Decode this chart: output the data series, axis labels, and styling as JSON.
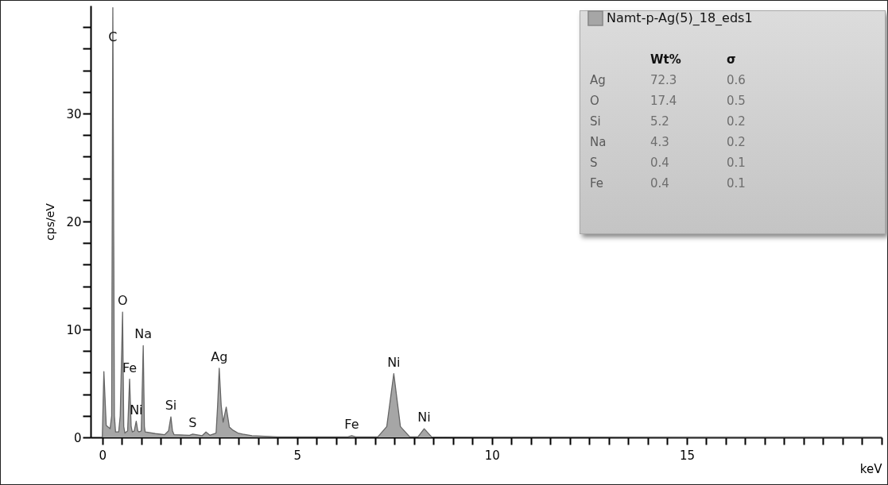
{
  "chart_data": {
    "type": "area",
    "ylabel": "cps/eV",
    "xlabel": "keV",
    "xlim": [
      -0.3,
      20
    ],
    "ylim": [
      0,
      40
    ],
    "xticks": [
      0,
      {
        "value": 0.5,
        "label": null
      },
      {
        "value": 1,
        "label": null
      },
      {
        "value": 1.5,
        "label": null
      },
      {
        "value": 2,
        "label": null
      },
      {
        "value": 2.5,
        "label": null
      },
      {
        "value": 3,
        "label": null
      },
      {
        "value": 3.5,
        "label": null
      },
      {
        "value": 4,
        "label": null
      },
      {
        "value": 4.5,
        "label": null
      },
      5,
      {
        "value": 5.5,
        "label": null
      },
      {
        "value": 6,
        "label": null
      },
      {
        "value": 6.5,
        "label": null
      },
      {
        "value": 7,
        "label": null
      },
      {
        "value": 7.5,
        "label": null
      },
      {
        "value": 8,
        "label": null
      },
      {
        "value": 8.5,
        "label": null
      },
      {
        "value": 9,
        "label": null
      },
      {
        "value": 9.5,
        "label": null
      },
      10,
      {
        "value": 10.5,
        "label": null
      },
      {
        "value": 11,
        "label": null
      },
      {
        "value": 11.5,
        "label": null
      },
      {
        "value": 12,
        "label": null
      },
      {
        "value": 12.5,
        "label": null
      },
      {
        "value": 13,
        "label": null
      },
      {
        "value": 13.5,
        "label": null
      },
      {
        "value": 14,
        "label": null
      },
      {
        "value": 14.5,
        "label": null
      },
      15,
      {
        "value": 15.5,
        "label": null
      },
      {
        "value": 16,
        "label": null
      },
      {
        "value": 16.5,
        "label": null
      },
      {
        "value": 17,
        "label": null
      },
      {
        "value": 17.5,
        "label": null
      },
      {
        "value": 18,
        "label": null
      },
      {
        "value": 18.5,
        "label": null
      },
      {
        "value": 19,
        "label": null
      },
      {
        "value": 19.5,
        "label": null
      },
      {
        "value": 20,
        "label": null
      }
    ],
    "yticks": [
      0,
      {
        "value": 2,
        "label": null
      },
      {
        "value": 4,
        "label": null
      },
      {
        "value": 6,
        "label": null
      },
      {
        "value": 8,
        "label": null
      },
      10,
      {
        "value": 12,
        "label": null
      },
      {
        "value": 14,
        "label": null
      },
      {
        "value": 16,
        "label": null
      },
      {
        "value": 18,
        "label": null
      },
      20,
      {
        "value": 22,
        "label": null
      },
      {
        "value": 24,
        "label": null
      },
      {
        "value": 26,
        "label": null
      },
      {
        "value": 28,
        "label": null
      },
      30,
      {
        "value": 32,
        "label": null
      },
      {
        "value": 34,
        "label": null
      },
      {
        "value": 36,
        "label": null
      },
      {
        "value": 38,
        "label": null
      }
    ],
    "legend": "top right",
    "series": [
      {
        "name": "Namt-p-Ag(5)_18_eds1",
        "color": "#a6a6a6",
        "x": [
          0,
          0.04,
          0.1,
          0.2,
          0.24,
          0.27,
          0.31,
          0.34,
          0.42,
          0.46,
          0.52,
          0.55,
          0.58,
          0.65,
          0.7,
          0.74,
          0.77,
          0.82,
          0.87,
          0.91,
          0.94,
          1.0,
          1.05,
          1.08,
          1.1,
          1.36,
          1.6,
          1.7,
          1.76,
          1.8,
          1.84,
          2.24,
          2.32,
          2.56,
          2.66,
          2.76,
          2.92,
          2.96,
          3.0,
          3.05,
          3.1,
          3.18,
          3.26,
          3.36,
          3.48,
          3.6,
          3.84,
          4.5,
          6.3,
          6.4,
          6.5,
          7.07,
          7.3,
          7.48,
          7.65,
          7.89,
          8.1,
          8.26,
          8.45,
          10,
          15,
          20
        ],
        "values": [
          0,
          6.1,
          1.1,
          0.8,
          2,
          39.8,
          2,
          0.5,
          0.5,
          2,
          11.6,
          1,
          0.4,
          0.6,
          5.4,
          1,
          0.5,
          0.6,
          1.5,
          0.6,
          0.5,
          0.6,
          8.5,
          1,
          0.5,
          0.35,
          0.25,
          0.6,
          1.9,
          0.6,
          0.25,
          0.2,
          0.3,
          0.15,
          0.5,
          0.2,
          0.4,
          3,
          6.4,
          3,
          1.4,
          2.8,
          0.95,
          0.65,
          0.4,
          0.3,
          0.15,
          0.05,
          0.05,
          0.15,
          0.05,
          0.05,
          1,
          5.9,
          1,
          0.05,
          0.05,
          0.8,
          0.05,
          0.03,
          0.02,
          0.02
        ]
      }
    ],
    "annotations": [
      {
        "text": "C",
        "x": 0.27,
        "y": 36
      },
      {
        "text": "O",
        "x": 0.52,
        "y": 11.6
      },
      {
        "text": "Na",
        "x": 1.05,
        "y": 8.5
      },
      {
        "text": "Fe",
        "x": 0.7,
        "y": 5.4
      },
      {
        "text": "Ni",
        "x": 0.87,
        "y": 1.5
      },
      {
        "text": "Si",
        "x": 1.76,
        "y": 1.9
      },
      {
        "text": "S",
        "x": 2.32,
        "y": 0.3
      },
      {
        "text": "Ag",
        "x": 3.0,
        "y": 6.4
      },
      {
        "text": "Fe",
        "x": 6.4,
        "y": 0.15
      },
      {
        "text": "Ni",
        "x": 7.48,
        "y": 5.9
      },
      {
        "text": "Ni",
        "x": 8.26,
        "y": 0.8
      },
      "Wt%",
      "σ",
      "Ag",
      "72.3",
      "0.6",
      "O",
      "17.4",
      "0.5",
      "Si",
      "5.2",
      "0.2",
      "Na",
      "4.3",
      "0.2",
      "S",
      "0.4",
      "0.1",
      "Fe",
      "0.4",
      "0.1"
    ]
  }
}
